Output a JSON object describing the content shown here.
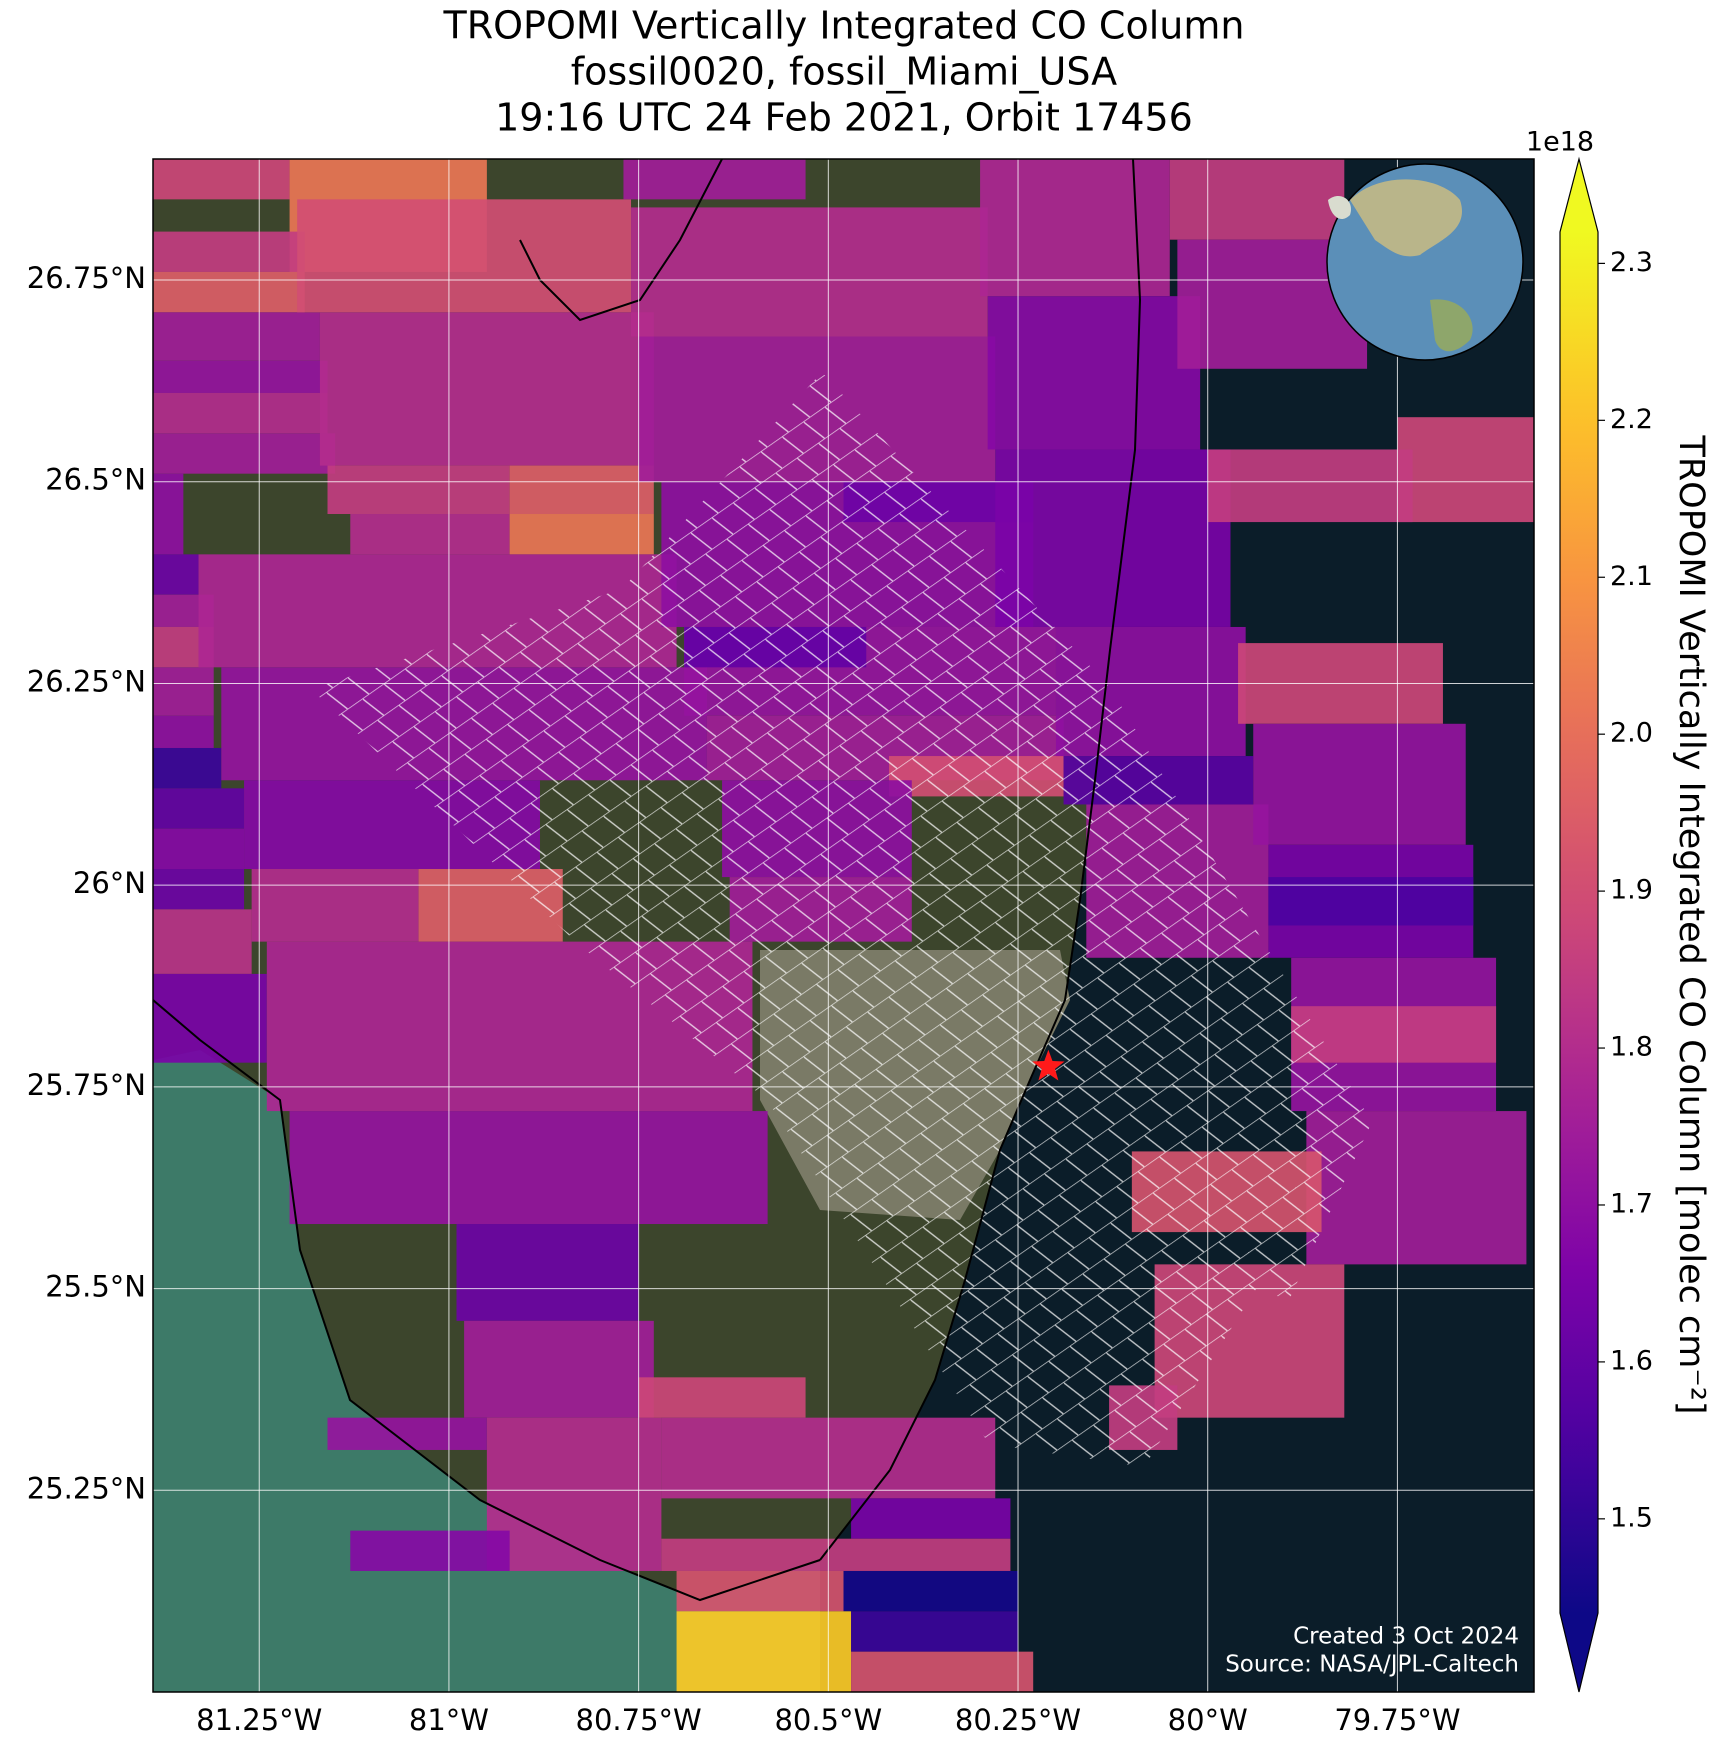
{
  "chart_data": {
    "type": "map",
    "title": [
      "TROPOMI Vertically Integrated CO Column",
      "fossil0020, fossil_Miami_USA",
      "19:16 UTC 24 Feb 2021, Orbit 17456"
    ],
    "xlim": [
      -81.39,
      -79.57
    ],
    "ylim": [
      25.0,
      26.9
    ],
    "xticks": [
      {
        "value": -81.25,
        "label": "81.25°W"
      },
      {
        "value": -81.0,
        "label": "81°W"
      },
      {
        "value": -80.75,
        "label": "80.75°W"
      },
      {
        "value": -80.5,
        "label": "80.5°W"
      },
      {
        "value": -80.25,
        "label": "80.25°W"
      },
      {
        "value": -80.0,
        "label": "80°W"
      },
      {
        "value": -79.75,
        "label": "79.75°W"
      }
    ],
    "yticks": [
      {
        "value": 25.25,
        "label": "25.25°N"
      },
      {
        "value": 25.5,
        "label": "25.5°N"
      },
      {
        "value": 25.75,
        "label": "25.75°N"
      },
      {
        "value": 26.0,
        "label": "26°N"
      },
      {
        "value": 26.25,
        "label": "26.25°N"
      },
      {
        "value": 26.5,
        "label": "26.5°N"
      },
      {
        "value": 26.75,
        "label": "26.75°N"
      }
    ],
    "grid": true,
    "colormap": "plasma",
    "clim": [
      1.44,
      2.32
    ],
    "colorbar_label": "TROPOMI Vertically Integrated CO Column [molec cm⁻²]",
    "colorbar_multiplier": "1e18",
    "colorbar_ticks": [
      1.5,
      1.6,
      1.7,
      1.8,
      1.9,
      {
        "value": 2.0,
        "label": "2.0"
      },
      2.1,
      2.2,
      2.3
    ],
    "site": {
      "lon": -80.21,
      "lat": 25.775
    },
    "footer": [
      "Created 3 Oct 2024",
      "Source: NASA/JPL-Caltech"
    ],
    "cells": [
      {
        "lon": [
          -81.39,
          -81.21
        ],
        "lat": [
          26.85,
          26.9
        ],
        "value": 1.88
      },
      {
        "lon": [
          -81.21,
          -80.95
        ],
        "lat": [
          26.76,
          26.9
        ],
        "value": 2.02
      },
      {
        "lon": [
          -81.39,
          -81.19
        ],
        "lat": [
          26.76,
          26.81
        ],
        "value": 1.85
      },
      {
        "lon": [
          -81.39,
          -81.19
        ],
        "lat": [
          26.71,
          26.76
        ],
        "value": 1.95
      },
      {
        "lon": [
          -81.39,
          -81.17
        ],
        "lat": [
          26.65,
          26.71
        ],
        "value": 1.75
      },
      {
        "lon": [
          -81.39,
          -81.16
        ],
        "lat": [
          26.61,
          26.65
        ],
        "value": 1.72
      },
      {
        "lon": [
          -81.39,
          -81.16
        ],
        "lat": [
          26.56,
          26.61
        ],
        "value": 1.8
      },
      {
        "lon": [
          -81.39,
          -81.15
        ],
        "lat": [
          26.51,
          26.56
        ],
        "value": 1.75
      },
      {
        "lon": [
          -81.39,
          -81.35
        ],
        "lat": [
          26.41,
          26.51
        ],
        "value": 1.7
      },
      {
        "lon": [
          -81.39,
          -81.33
        ],
        "lat": [
          26.36,
          26.41
        ],
        "value": 1.62
      },
      {
        "lon": [
          -81.39,
          -81.31
        ],
        "lat": [
          26.32,
          26.36
        ],
        "value": 1.75
      },
      {
        "lon": [
          -81.39,
          -81.31
        ],
        "lat": [
          26.27,
          26.32
        ],
        "value": 1.85
      },
      {
        "lon": [
          -81.39,
          -81.31
        ],
        "lat": [
          26.21,
          26.27
        ],
        "value": 1.75
      },
      {
        "lon": [
          -81.39,
          -81.31
        ],
        "lat": [
          26.17,
          26.21
        ],
        "value": 1.7
      },
      {
        "lon": [
          -81.39,
          -81.3
        ],
        "lat": [
          26.12,
          26.17
        ],
        "value": 1.52
      },
      {
        "lon": [
          -81.39,
          -81.27
        ],
        "lat": [
          26.07,
          26.12
        ],
        "value": 1.6
      },
      {
        "lon": [
          -81.39,
          -81.27
        ],
        "lat": [
          26.02,
          26.07
        ],
        "value": 1.68
      },
      {
        "lon": [
          -81.39,
          -81.27
        ],
        "lat": [
          25.97,
          26.02
        ],
        "value": 1.62
      },
      {
        "lon": [
          -81.39,
          -81.26
        ],
        "lat": [
          25.89,
          25.97
        ],
        "value": 1.82
      },
      {
        "lon": [
          -81.39,
          -81.24
        ],
        "lat": [
          25.78,
          25.89
        ],
        "value": 1.65
      },
      {
        "lon": [
          -81.2,
          -80.76
        ],
        "lat": [
          26.71,
          26.85
        ],
        "value": 1.9
      },
      {
        "lon": [
          -81.17,
          -80.73
        ],
        "lat": [
          26.52,
          26.71
        ],
        "value": 1.8
      },
      {
        "lon": [
          -81.16,
          -80.92
        ],
        "lat": [
          26.46,
          26.52
        ],
        "value": 1.85
      },
      {
        "lon": [
          -80.92,
          -80.73
        ],
        "lat": [
          26.46,
          26.52
        ],
        "value": 1.95
      },
      {
        "lon": [
          -81.13,
          -80.92
        ],
        "lat": [
          26.41,
          26.46
        ],
        "value": 1.8
      },
      {
        "lon": [
          -80.92,
          -80.73
        ],
        "lat": [
          26.41,
          26.46
        ],
        "value": 2.02
      },
      {
        "lon": [
          -81.33,
          -80.7
        ],
        "lat": [
          26.27,
          26.41
        ],
        "value": 1.78
      },
      {
        "lon": [
          -81.3,
          -80.66
        ],
        "lat": [
          26.13,
          26.27
        ],
        "value": 1.72
      },
      {
        "lon": [
          -81.27,
          -80.88
        ],
        "lat": [
          26.02,
          26.13
        ],
        "value": 1.68
      },
      {
        "lon": [
          -81.26,
          -81.04
        ],
        "lat": [
          25.93,
          26.02
        ],
        "value": 1.8
      },
      {
        "lon": [
          -81.04,
          -80.85
        ],
        "lat": [
          25.93,
          26.02
        ],
        "value": 1.95
      },
      {
        "lon": [
          -81.24,
          -80.6
        ],
        "lat": [
          25.72,
          25.93
        ],
        "value": 1.78
      },
      {
        "lon": [
          -81.21,
          -80.58
        ],
        "lat": [
          25.58,
          25.72
        ],
        "value": 1.72
      },
      {
        "lon": [
          -80.99,
          -80.75
        ],
        "lat": [
          25.46,
          25.58
        ],
        "value": 1.62
      },
      {
        "lon": [
          -80.98,
          -80.73
        ],
        "lat": [
          25.34,
          25.46
        ],
        "value": 1.75
      },
      {
        "lon": [
          -80.95,
          -80.72
        ],
        "lat": [
          25.15,
          25.34
        ],
        "value": 1.8
      },
      {
        "lon": [
          -81.13,
          -80.92
        ],
        "lat": [
          25.15,
          25.2
        ],
        "value": 1.68
      },
      {
        "lon": [
          -81.16,
          -80.95
        ],
        "lat": [
          25.3,
          25.34
        ],
        "value": 1.72
      },
      {
        "lon": [
          -80.77,
          -80.53
        ],
        "lat": [
          26.85,
          26.9
        ],
        "value": 1.75
      },
      {
        "lon": [
          -80.76,
          -80.29
        ],
        "lat": [
          26.68,
          26.84
        ],
        "value": 1.8
      },
      {
        "lon": [
          -80.75,
          -80.28
        ],
        "lat": [
          26.5,
          26.68
        ],
        "value": 1.75
      },
      {
        "lon": [
          -80.72,
          -80.23
        ],
        "lat": [
          26.32,
          26.5
        ],
        "value": 1.7
      },
      {
        "lon": [
          -80.48,
          -80.23
        ],
        "lat": [
          26.45,
          26.5
        ],
        "value": 1.62
      },
      {
        "lon": [
          -80.69,
          -80.2
        ],
        "lat": [
          26.21,
          26.32
        ],
        "value": 1.72
      },
      {
        "lon": [
          -80.69,
          -80.45
        ],
        "lat": [
          26.27,
          26.32
        ],
        "value": 1.6
      },
      {
        "lon": [
          -80.66,
          -80.19
        ],
        "lat": [
          26.13,
          26.21
        ],
        "value": 1.75
      },
      {
        "lon": [
          -80.42,
          -80.19
        ],
        "lat": [
          26.11,
          26.16
        ],
        "value": 1.9
      },
      {
        "lon": [
          -80.64,
          -80.39
        ],
        "lat": [
          26.01,
          26.13
        ],
        "value": 1.7
      },
      {
        "lon": [
          -80.63,
          -80.39
        ],
        "lat": [
          25.93,
          26.01
        ],
        "value": 1.75
      },
      {
        "lon": [
          -80.75,
          -80.53
        ],
        "lat": [
          25.34,
          25.39
        ],
        "value": 1.88
      },
      {
        "lon": [
          -80.72,
          -80.28
        ],
        "lat": [
          25.24,
          25.34
        ],
        "value": 1.8
      },
      {
        "lon": [
          -80.47,
          -80.26
        ],
        "lat": [
          25.19,
          25.24
        ],
        "value": 1.65
      },
      {
        "lon": [
          -80.72,
          -80.26
        ],
        "lat": [
          25.15,
          25.19
        ],
        "value": 1.85
      },
      {
        "lon": [
          -80.7,
          -80.48
        ],
        "lat": [
          25.1,
          25.15
        ],
        "value": 1.92
      },
      {
        "lon": [
          -80.48,
          -80.25
        ],
        "lat": [
          25.1,
          25.15
        ],
        "value": 1.45
      },
      {
        "lon": [
          -80.7,
          -80.47
        ],
        "lat": [
          25.0,
          25.1
        ],
        "value": 2.22
      },
      {
        "lon": [
          -80.47,
          -80.25
        ],
        "lat": [
          25.05,
          25.1
        ],
        "value": 1.52
      },
      {
        "lon": [
          -80.47,
          -80.23
        ],
        "lat": [
          25.0,
          25.05
        ],
        "value": 1.92
      },
      {
        "lon": [
          -80.3,
          -80.05
        ],
        "lat": [
          26.73,
          26.9
        ],
        "value": 1.78
      },
      {
        "lon": [
          -80.29,
          -80.01
        ],
        "lat": [
          26.54,
          26.73
        ],
        "value": 1.68
      },
      {
        "lon": [
          -80.28,
          -79.97
        ],
        "lat": [
          26.32,
          26.54
        ],
        "value": 1.65
      },
      {
        "lon": [
          -80.2,
          -79.95
        ],
        "lat": [
          26.16,
          26.32
        ],
        "value": 1.7
      },
      {
        "lon": [
          -80.19,
          -79.94
        ],
        "lat": [
          26.1,
          26.16
        ],
        "value": 1.58
      },
      {
        "lon": [
          -80.16,
          -79.92
        ],
        "lat": [
          25.91,
          26.1
        ],
        "value": 1.75
      },
      {
        "lon": [
          -80.05,
          -79.82
        ],
        "lat": [
          26.8,
          26.9
        ],
        "value": 1.85
      },
      {
        "lon": [
          -80.04,
          -79.79
        ],
        "lat": [
          26.64,
          26.8
        ],
        "value": 1.75
      },
      {
        "lon": [
          -79.75,
          -79.57
        ],
        "lat": [
          26.45,
          26.58
        ],
        "value": 1.88
      },
      {
        "lon": [
          -80.0,
          -79.73
        ],
        "lat": [
          26.45,
          26.54
        ],
        "value": 1.85
      },
      {
        "lon": [
          -79.96,
          -79.69
        ],
        "lat": [
          26.2,
          26.3
        ],
        "value": 1.88
      },
      {
        "lon": [
          -79.94,
          -79.66
        ],
        "lat": [
          26.05,
          26.2
        ],
        "value": 1.72
      },
      {
        "lon": [
          -79.92,
          -79.65
        ],
        "lat": [
          25.91,
          26.05
        ],
        "value": 1.65
      },
      {
        "lon": [
          -79.92,
          -79.65
        ],
        "lat": [
          25.95,
          26.01
        ],
        "value": 1.55
      },
      {
        "lon": [
          -79.89,
          -79.62
        ],
        "lat": [
          25.72,
          25.91
        ],
        "value": 1.72
      },
      {
        "lon": [
          -79.89,
          -79.62
        ],
        "lat": [
          25.78,
          25.85
        ],
        "value": 1.85
      },
      {
        "lon": [
          -79.87,
          -79.58
        ],
        "lat": [
          25.53,
          25.72
        ],
        "value": 1.75
      },
      {
        "lon": [
          -80.1,
          -79.85
        ],
        "lat": [
          25.57,
          25.67
        ],
        "value": 1.92
      },
      {
        "lon": [
          -80.07,
          -79.82
        ],
        "lat": [
          25.34,
          25.53
        ],
        "value": 1.88
      },
      {
        "lon": [
          -80.13,
          -80.04
        ],
        "lat": [
          25.3,
          25.38
        ],
        "value": 1.85
      }
    ]
  }
}
